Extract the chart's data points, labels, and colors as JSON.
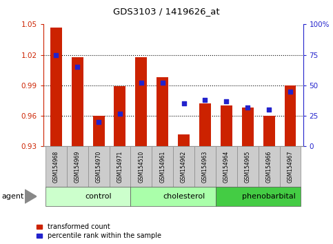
{
  "title": "GDS3103 / 1419626_at",
  "samples": [
    "GSM154968",
    "GSM154969",
    "GSM154970",
    "GSM154971",
    "GSM154510",
    "GSM154961",
    "GSM154962",
    "GSM154963",
    "GSM154964",
    "GSM154965",
    "GSM154966",
    "GSM154967"
  ],
  "transformed_count": [
    1.047,
    1.018,
    0.96,
    0.989,
    1.018,
    0.998,
    0.942,
    0.972,
    0.97,
    0.968,
    0.96,
    0.99
  ],
  "percentile_rank": [
    75,
    65,
    20,
    27,
    52,
    52,
    35,
    38,
    37,
    32,
    30,
    45
  ],
  "baseline": 0.93,
  "ylim_left": [
    0.93,
    1.05
  ],
  "ylim_right": [
    0,
    100
  ],
  "yticks_left": [
    0.93,
    0.96,
    0.99,
    1.02,
    1.05
  ],
  "yticks_right": [
    0,
    25,
    50,
    75,
    100
  ],
  "bar_color": "#cc2200",
  "dot_color": "#2222cc",
  "axis_color_left": "#cc2200",
  "axis_color_right": "#2222cc",
  "groups": [
    {
      "label": "control",
      "start": 0,
      "end": 4
    },
    {
      "label": "cholesterol",
      "start": 4,
      "end": 8
    },
    {
      "label": "phenobarbital",
      "start": 8,
      "end": 12
    }
  ],
  "group_colors": [
    "#ccffcc",
    "#aaffaa",
    "#44cc44"
  ],
  "label_bg_color": "#cccccc",
  "agent_label": "agent",
  "legend_tc": "transformed count",
  "legend_pr": "percentile rank within the sample",
  "grid_yticks": [
    0.96,
    0.99,
    1.02
  ]
}
